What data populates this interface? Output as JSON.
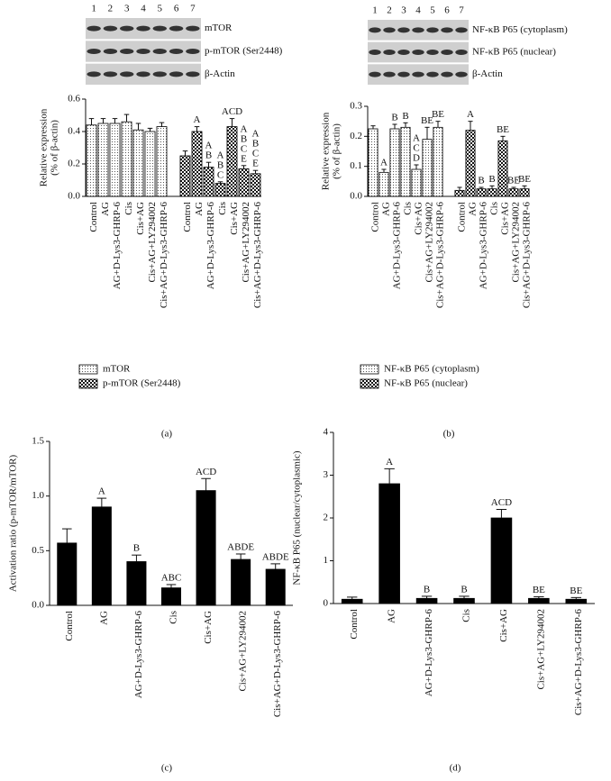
{
  "chart_data": [
    {
      "type": "bar",
      "panel_label": "(a)",
      "ylabel": [
        "Relative expression",
        "(% of β-actin)"
      ],
      "blot": {
        "lanes": [
          "1",
          "2",
          "3",
          "4",
          "5",
          "6",
          "7"
        ],
        "bands": [
          "mTOR",
          "p-mTOR (Ser2448)",
          "β-Actin"
        ]
      },
      "categories": [
        "Control",
        "AG",
        "AG+D-Lys3-GHRP-6",
        "Cis",
        "Cis+AG",
        "Cis+AG+LY294002",
        "Cis+AG+D-Lys3-GHRP-6"
      ],
      "series": [
        {
          "name": "mTOR",
          "pattern": "dots",
          "color": "#000000",
          "values": [
            0.44,
            0.45,
            0.45,
            0.46,
            0.41,
            0.4,
            0.43
          ],
          "errors": [
            0.04,
            0.03,
            0.03,
            0.045,
            0.04,
            0.02,
            0.025
          ],
          "annotations": [
            null,
            null,
            null,
            null,
            null,
            null,
            null
          ]
        },
        {
          "name": "p-mTOR (Ser2448)",
          "pattern": "checker",
          "color": "#000000",
          "values": [
            0.25,
            0.4,
            0.18,
            0.08,
            0.43,
            0.17,
            0.14
          ],
          "errors": [
            0.03,
            0.03,
            0.03,
            0.01,
            0.05,
            0.02,
            0.02
          ],
          "annotations": [
            null,
            [
              "A"
            ],
            [
              "A",
              "B"
            ],
            [
              "A",
              "B",
              "C"
            ],
            [
              "ACD"
            ],
            [
              "A",
              "B",
              "C",
              "E"
            ],
            [
              "A",
              "B",
              "C",
              "E"
            ]
          ]
        }
      ],
      "ylim": [
        0,
        0.6
      ],
      "yticks": [
        {
          "value": 0,
          "label": "0.0"
        },
        0.2,
        0.4,
        0.6
      ]
    },
    {
      "type": "bar",
      "panel_label": "(b)",
      "ylabel": [
        "Relative expression",
        "(% of β-actin)"
      ],
      "blot": {
        "lanes": [
          "1",
          "2",
          "3",
          "4",
          "5",
          "6",
          "7"
        ],
        "bands": [
          "NF-κB P65 (cytoplasm)",
          "NF-κB P65 (nuclear)",
          "β-Actin"
        ]
      },
      "categories": [
        "Control",
        "AG",
        "AG+D-Lys3-GHRP-6",
        "Cis",
        "Cis+AG",
        "Cis+AG+LY294002",
        "Cis+AG+D-Lys3-GHRP-6"
      ],
      "series": [
        {
          "name": "NF-κB P65 (cytoplasm)",
          "pattern": "dots",
          "color": "#000000",
          "values": [
            0.225,
            0.08,
            0.225,
            0.23,
            0.09,
            0.19,
            0.23
          ],
          "errors": [
            0.01,
            0.01,
            0.015,
            0.015,
            0.015,
            0.04,
            0.02
          ],
          "annotations": [
            null,
            [
              "A"
            ],
            [
              "B"
            ],
            [
              "B"
            ],
            [
              "A",
              "C",
              "D"
            ],
            [
              "BE"
            ],
            [
              "BE"
            ]
          ]
        },
        {
          "name": "NF-κB P65 (nuclear)",
          "pattern": "checker",
          "color": "#000000",
          "values": [
            0.02,
            0.22,
            0.025,
            0.025,
            0.185,
            0.025,
            0.025
          ],
          "errors": [
            0.01,
            0.03,
            0.005,
            0.01,
            0.015,
            0.005,
            0.01
          ],
          "annotations": [
            null,
            [
              "A"
            ],
            [
              "B"
            ],
            [
              "B"
            ],
            [
              "BE"
            ],
            [
              "BE"
            ],
            [
              "BE"
            ]
          ]
        }
      ],
      "ylim": [
        0,
        0.3
      ],
      "yticks": [
        {
          "value": 0,
          "label": "0.0"
        },
        0.1,
        0.2,
        0.3
      ]
    },
    {
      "type": "bar",
      "panel_label": "(c)",
      "ylabel": [
        "Activation ratio (p-mTOR/mTOR)"
      ],
      "categories": [
        "Control",
        "AG",
        "AG+D-Lys3-GHRP-6",
        "Cis",
        "Cis+AG",
        "Cis+AG+LY294002",
        "Cis+AG+D-Lys3-GHRP-6"
      ],
      "values": [
        0.57,
        0.9,
        0.4,
        0.16,
        1.05,
        0.42,
        0.33
      ],
      "errors": [
        0.13,
        0.08,
        0.06,
        0.03,
        0.11,
        0.05,
        0.05
      ],
      "annotations": [
        null,
        [
          "A"
        ],
        [
          "B"
        ],
        [
          "ABC"
        ],
        [
          "ACD"
        ],
        [
          "ABDE"
        ],
        [
          "ABDE"
        ]
      ],
      "color": "#000000",
      "ylim": [
        0,
        1.5
      ],
      "yticks": [
        {
          "value": 0,
          "label": "0.0"
        },
        0.5,
        {
          "value": 1,
          "label": "1.0"
        },
        1.5
      ]
    },
    {
      "type": "bar",
      "panel_label": "(d)",
      "ylabel": [
        "NF-κB P65 (nuclear/cytoplasmic)"
      ],
      "categories": [
        "Control",
        "AG",
        "AG+D-Lys3-GHRP-6",
        "Cis",
        "Cis+AG",
        "Cis+AG+LY294002",
        "Cis+AG+D-Lys3-GHRP-6"
      ],
      "values": [
        0.1,
        2.8,
        0.12,
        0.12,
        2.0,
        0.12,
        0.1
      ],
      "errors": [
        0.05,
        0.35,
        0.05,
        0.05,
        0.2,
        0.04,
        0.04
      ],
      "annotations": [
        null,
        [
          "A"
        ],
        [
          "B"
        ],
        [
          "B"
        ],
        [
          "ACD"
        ],
        [
          "BE"
        ],
        [
          "BE"
        ]
      ],
      "color": "#000000",
      "ylim": [
        0,
        4
      ],
      "yticks": [
        0,
        1,
        2,
        3,
        4
      ]
    }
  ]
}
